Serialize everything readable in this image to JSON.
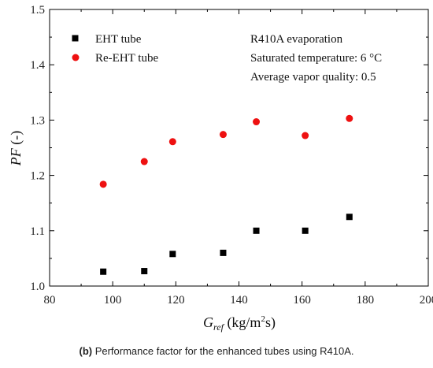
{
  "chart_data": {
    "type": "scatter",
    "xlabel": {
      "main": "G",
      "sub": "ref",
      "units_pre": " (kg/m",
      "units_sup": "2",
      "units_post": "s)"
    },
    "ylabel": {
      "main": "PF",
      "units": " (-)"
    },
    "xlim": [
      80,
      200
    ],
    "ylim": [
      1.0,
      1.5
    ],
    "xticks": [
      "80",
      "100",
      "120",
      "140",
      "160",
      "180",
      "200"
    ],
    "yticks": [
      "1.0",
      "1.1",
      "1.2",
      "1.3",
      "1.4",
      "1.5"
    ],
    "grid": false,
    "legend_position": "top-left",
    "series": [
      {
        "name": "EHT tube",
        "marker": "square",
        "color": "#000000",
        "points": [
          {
            "x": 97,
            "y": 1.026
          },
          {
            "x": 110,
            "y": 1.027
          },
          {
            "x": 119,
            "y": 1.058
          },
          {
            "x": 135,
            "y": 1.06
          },
          {
            "x": 145.5,
            "y": 1.1
          },
          {
            "x": 161,
            "y": 1.1
          },
          {
            "x": 175,
            "y": 1.125
          }
        ]
      },
      {
        "name": "Re-EHT tube",
        "marker": "circle",
        "color": "#ee1111",
        "points": [
          {
            "x": 97,
            "y": 1.184
          },
          {
            "x": 110,
            "y": 1.225
          },
          {
            "x": 119,
            "y": 1.261
          },
          {
            "x": 135,
            "y": 1.274
          },
          {
            "x": 145.5,
            "y": 1.297
          },
          {
            "x": 161,
            "y": 1.272
          },
          {
            "x": 175,
            "y": 1.303
          }
        ]
      }
    ],
    "annotations": [
      "R410A evaporation",
      "Saturated temperature: 6 °C",
      "Average vapor quality: 0.5"
    ]
  },
  "caption": {
    "label": "(b)",
    "text": " Performance factor for the enhanced tubes using R410A."
  }
}
